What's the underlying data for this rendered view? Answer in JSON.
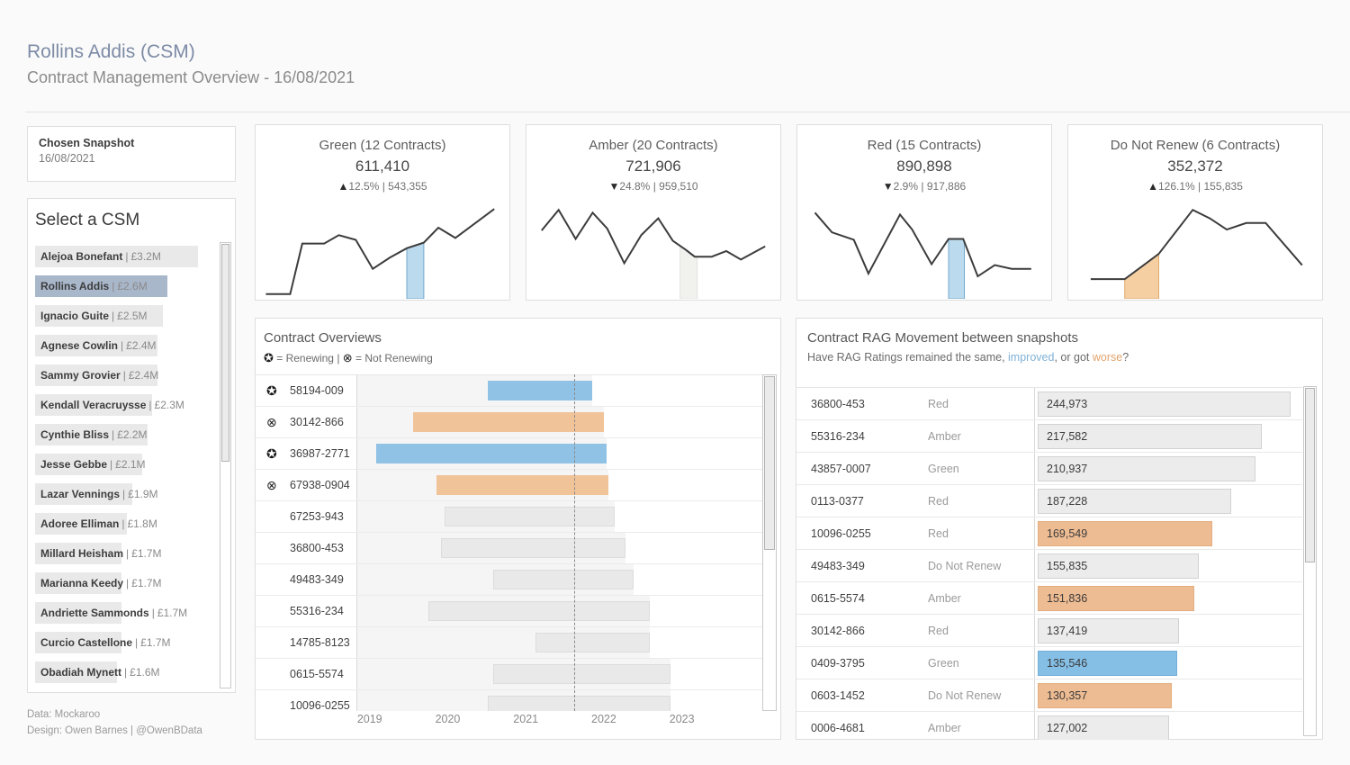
{
  "header": {
    "title": "Rollins Addis (CSM)",
    "subtitle": "Contract Management Overview - 16/08/2021"
  },
  "snapshot": {
    "label": "Chosen Snapshot",
    "date": "16/08/2021"
  },
  "misc": {
    "pipe": "|"
  },
  "csm_selector": {
    "title": "Select a CSM",
    "separator": "|",
    "max_value_m": 3.2,
    "items": [
      {
        "name": "Alejoa Bonefant",
        "value_label": "£3.2M",
        "value_m": 3.2,
        "selected": false
      },
      {
        "name": "Rollins Addis",
        "value_label": "£2.6M",
        "value_m": 2.6,
        "selected": true
      },
      {
        "name": "Ignacio Guite",
        "value_label": "£2.5M",
        "value_m": 2.5,
        "selected": false
      },
      {
        "name": "Agnese Cowlin",
        "value_label": "£2.4M",
        "value_m": 2.4,
        "selected": false
      },
      {
        "name": "Sammy Grovier",
        "value_label": "£2.4M",
        "value_m": 2.4,
        "selected": false
      },
      {
        "name": "Kendall Veracruysse",
        "value_label": "£2.3M",
        "value_m": 2.3,
        "selected": false
      },
      {
        "name": "Cynthie Bliss",
        "value_label": "£2.2M",
        "value_m": 2.2,
        "selected": false
      },
      {
        "name": "Jesse Gebbe",
        "value_label": "£2.1M",
        "value_m": 2.1,
        "selected": false
      },
      {
        "name": "Lazar Vennings",
        "value_label": "£1.9M",
        "value_m": 1.9,
        "selected": false
      },
      {
        "name": "Adoree Elliman",
        "value_label": "£1.8M",
        "value_m": 1.8,
        "selected": false
      },
      {
        "name": "Millard Heisham",
        "value_label": "£1.7M",
        "value_m": 1.7,
        "selected": false
      },
      {
        "name": "Marianna Keedy",
        "value_label": "£1.7M",
        "value_m": 1.7,
        "selected": false
      },
      {
        "name": "Andriette Sammonds",
        "value_label": "£1.7M",
        "value_m": 1.7,
        "selected": false
      },
      {
        "name": "Curcio Castellone",
        "value_label": "£1.7M",
        "value_m": 1.7,
        "selected": false
      },
      {
        "name": "Obadiah Mynett",
        "value_label": "£1.6M",
        "value_m": 1.6,
        "selected": false
      }
    ]
  },
  "footer": {
    "line1": "Data: Mockaroo",
    "line2": "Design: Owen Barnes | @OwenBData"
  },
  "kpi_cards": [
    {
      "title": "Green (12 Contracts)",
      "value": "611,410",
      "delta_arrow": "▲",
      "delta_pct": "12.5%",
      "prev": "543,355",
      "spark": {
        "points": [
          [
            2,
            95
          ],
          [
            12,
            95
          ],
          [
            17,
            41
          ],
          [
            26,
            41
          ],
          [
            32,
            32
          ],
          [
            39,
            37
          ],
          [
            46,
            68
          ],
          [
            53,
            56
          ],
          [
            60,
            46
          ],
          [
            67,
            40
          ],
          [
            73,
            24
          ],
          [
            80,
            35
          ],
          [
            96,
            4
          ]
        ],
        "highlight": {
          "from": 60,
          "to": 67,
          "color": "blue"
        }
      }
    },
    {
      "title": "Amber (20 Contracts)",
      "value": "721,906",
      "delta_arrow": "▼",
      "delta_pct": "24.8%",
      "prev": "959,510",
      "spark": {
        "points": [
          [
            4,
            27
          ],
          [
            11,
            5
          ],
          [
            18,
            36
          ],
          [
            25,
            8
          ],
          [
            31,
            25
          ],
          [
            38,
            62
          ],
          [
            45,
            32
          ],
          [
            52,
            14
          ],
          [
            58,
            38
          ],
          [
            63,
            47
          ],
          [
            67,
            55
          ],
          [
            74,
            55
          ],
          [
            80,
            49
          ],
          [
            86,
            58
          ],
          [
            96,
            44
          ]
        ],
        "highlight": {
          "from": 61,
          "to": 68,
          "color": "faint"
        }
      }
    },
    {
      "title": "Red (15 Contracts)",
      "value": "890,898",
      "delta_arrow": "▼",
      "delta_pct": "2.9%",
      "prev": "917,886",
      "spark": {
        "points": [
          [
            5,
            8
          ],
          [
            12,
            29
          ],
          [
            21,
            37
          ],
          [
            27,
            73
          ],
          [
            40,
            10
          ],
          [
            45,
            26
          ],
          [
            53,
            63
          ],
          [
            60,
            36
          ],
          [
            66,
            36
          ],
          [
            72,
            76
          ],
          [
            79,
            64
          ],
          [
            86,
            68
          ],
          [
            94,
            68
          ]
        ],
        "highlight": {
          "from": 60,
          "to": 66.5,
          "color": "blue"
        }
      }
    },
    {
      "title": "Do Not Renew (6 Contracts)",
      "value": "352,372",
      "delta_arrow": "▲",
      "delta_pct": "126.1%",
      "prev": "155,835",
      "spark": {
        "points": [
          [
            7,
            79
          ],
          [
            21,
            79
          ],
          [
            35,
            52
          ],
          [
            49,
            5
          ],
          [
            56,
            14
          ],
          [
            63,
            26
          ],
          [
            71,
            19
          ],
          [
            79,
            19
          ],
          [
            94,
            64
          ]
        ],
        "highlight": {
          "from": 21,
          "to": 35,
          "color": "orange"
        }
      }
    }
  ],
  "gantt": {
    "title": "Contract Overviews",
    "legend": {
      "renew_icon": "✪",
      "renew_label": "= Renewing",
      "sep": "|",
      "notrenew_icon": "⊗",
      "notrenew_label": "= Not Renewing"
    },
    "axis": {
      "min": 2018.83,
      "max": 2024.03,
      "ticks": [
        2019,
        2020,
        2021,
        2022,
        2023
      ],
      "today": 2021.62
    },
    "rows": [
      {
        "id": "58194-009",
        "icon": "renewing",
        "color": "blue",
        "start": 2020.5,
        "end": 2021.85
      },
      {
        "id": "30142-866",
        "icon": "not-renewing",
        "color": "orange",
        "start": 2019.55,
        "end": 2022.0
      },
      {
        "id": "36987-2771",
        "icon": "renewing",
        "color": "blue",
        "start": 2019.07,
        "end": 2022.03
      },
      {
        "id": "67938-0904",
        "icon": "not-renewing",
        "color": "orange",
        "start": 2019.85,
        "end": 2022.05
      },
      {
        "id": "67253-943",
        "icon": "none",
        "color": "gray",
        "start": 2019.95,
        "end": 2022.13
      },
      {
        "id": "36800-453",
        "icon": "none",
        "color": "gray",
        "start": 2019.9,
        "end": 2022.27
      },
      {
        "id": "49483-349",
        "icon": "none",
        "color": "gray",
        "start": 2020.58,
        "end": 2022.38
      },
      {
        "id": "55316-234",
        "icon": "none",
        "color": "gray",
        "start": 2019.74,
        "end": 2022.58
      },
      {
        "id": "14785-8123",
        "icon": "none",
        "color": "gray",
        "start": 2021.12,
        "end": 2022.59
      },
      {
        "id": "0615-5574",
        "icon": "none",
        "color": "gray",
        "start": 2020.58,
        "end": 2022.85
      },
      {
        "id": "10096-0255",
        "icon": "none",
        "color": "gray",
        "start": 2020.5,
        "end": 2022.85
      }
    ]
  },
  "rag": {
    "title": "Contract RAG Movement between snapshots",
    "subtitle_parts": [
      {
        "text": "Have RAG Ratings remained the same, ",
        "color": "default"
      },
      {
        "text": "improved",
        "color": "blue"
      },
      {
        "text": ", or got ",
        "color": "default"
      },
      {
        "text": "worse",
        "color": "orange"
      },
      {
        "text": "?",
        "color": "default"
      }
    ],
    "axis_max": 247000,
    "rows": [
      {
        "id": "36800-453",
        "status": "Red",
        "value": 244973,
        "value_label": "244,973",
        "color": "gray"
      },
      {
        "id": "55316-234",
        "status": "Amber",
        "value": 217582,
        "value_label": "217,582",
        "color": "gray"
      },
      {
        "id": "43857-0007",
        "status": "Green",
        "value": 210937,
        "value_label": "210,937",
        "color": "gray"
      },
      {
        "id": "0113-0377",
        "status": "Red",
        "value": 187228,
        "value_label": "187,228",
        "color": "gray"
      },
      {
        "id": "10096-0255",
        "status": "Red",
        "value": 169549,
        "value_label": "169,549",
        "color": "orange"
      },
      {
        "id": "49483-349",
        "status": "Do Not Renew",
        "value": 155835,
        "value_label": "155,835",
        "color": "gray"
      },
      {
        "id": "0615-5574",
        "status": "Amber",
        "value": 151836,
        "value_label": "151,836",
        "color": "orange"
      },
      {
        "id": "30142-866",
        "status": "Red",
        "value": 137419,
        "value_label": "137,419",
        "color": "gray"
      },
      {
        "id": "0409-3795",
        "status": "Green",
        "value": 135546,
        "value_label": "135,546",
        "color": "blue"
      },
      {
        "id": "0603-1452",
        "status": "Do Not Renew",
        "value": 130357,
        "value_label": "130,357",
        "color": "orange"
      },
      {
        "id": "0006-4681",
        "status": "Amber",
        "value": 127002,
        "value_label": "127,002",
        "color": "gray"
      }
    ]
  },
  "colors": {
    "title_blue": "#7d8ba6",
    "bar_blue": "#90c2e5",
    "bar_orange": "#f1c399",
    "bar_gray": "#ececec",
    "selected_csm": "#a9b7cb",
    "spark_line": "#3c3c3c",
    "spark_blue_fill": "#bcdaed",
    "spark_blue_stroke": "#74a8cc",
    "spark_faint_fill": "#f1f1ee",
    "spark_faint_stroke": "#e3e3df",
    "spark_orange_fill": "#f5cfa2",
    "spark_orange_stroke": "#dfa96e",
    "link_blue": "#7fb1d6",
    "link_orange": "#e2a36d"
  }
}
